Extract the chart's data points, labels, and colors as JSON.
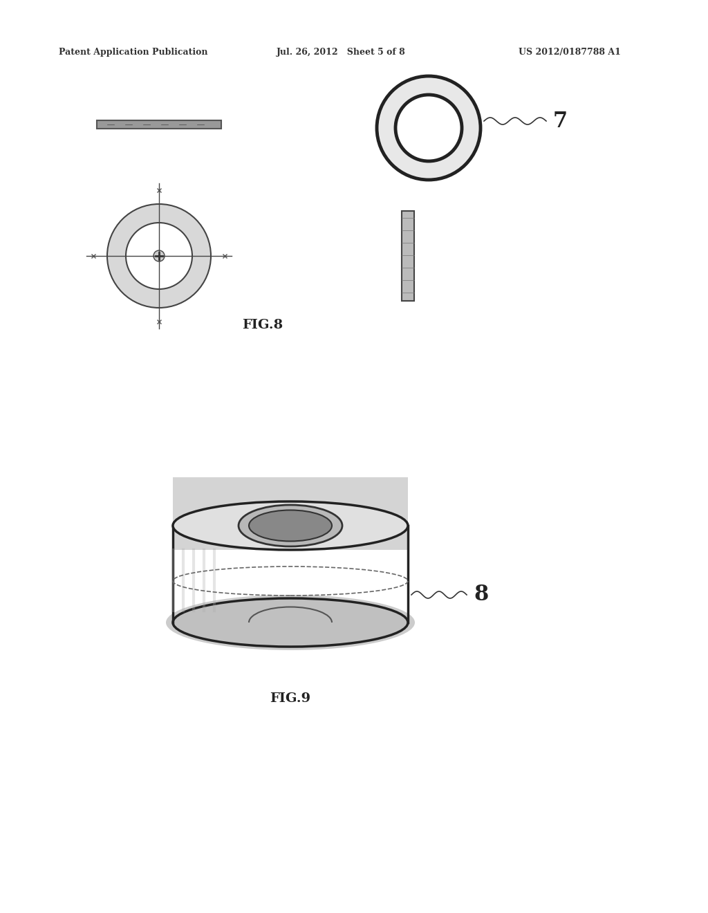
{
  "header_left": "Patent Application Publication",
  "header_mid": "Jul. 26, 2012   Sheet 5 of 8",
  "header_right": "US 2012/0187788 A1",
  "fig8_label": "FIG.8",
  "fig9_label": "FIG.9",
  "label_7": "7",
  "label_8": "8",
  "bg_color": "#ffffff",
  "line_color": "#000000",
  "gray_color": "#888888",
  "light_gray": "#cccccc",
  "medium_gray": "#aaaaaa"
}
